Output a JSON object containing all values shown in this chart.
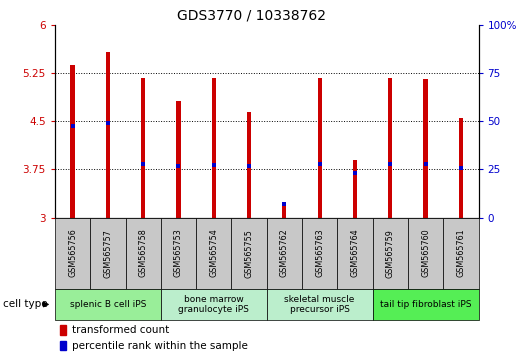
{
  "title": "GDS3770 / 10338762",
  "samples": [
    "GSM565756",
    "GSM565757",
    "GSM565758",
    "GSM565753",
    "GSM565754",
    "GSM565755",
    "GSM565762",
    "GSM565763",
    "GSM565764",
    "GSM565759",
    "GSM565760",
    "GSM565761"
  ],
  "bar_values": [
    5.37,
    5.57,
    5.18,
    4.82,
    5.17,
    4.65,
    3.25,
    5.17,
    3.9,
    5.17,
    5.15,
    4.55
  ],
  "percentile_values": [
    4.42,
    4.47,
    3.83,
    3.8,
    3.82,
    3.8,
    3.22,
    3.83,
    3.7,
    3.83,
    3.83,
    3.78
  ],
  "ymin": 3.0,
  "ymax": 6.0,
  "yticks": [
    3.0,
    3.75,
    4.5,
    5.25,
    6.0
  ],
  "ytick_labels": [
    "3",
    "3.75",
    "4.5",
    "5.25",
    "6"
  ],
  "y2ticks": [
    0,
    25,
    50,
    75,
    100
  ],
  "y2tick_labels": [
    "0",
    "25",
    "50",
    "75",
    "100%"
  ],
  "bar_color": "#cc0000",
  "percentile_color": "#0000cc",
  "bar_width": 0.12,
  "cell_type_groups": [
    {
      "label": "splenic B cell iPS",
      "start": 0,
      "end": 3,
      "color": "#99ee99"
    },
    {
      "label": "bone marrow\ngranulocyte iPS",
      "start": 3,
      "end": 6,
      "color": "#bbeecc"
    },
    {
      "label": "skeletal muscle\nprecursor iPS",
      "start": 6,
      "end": 9,
      "color": "#bbeecc"
    },
    {
      "label": "tail tip fibroblast iPS",
      "start": 9,
      "end": 12,
      "color": "#55ee55"
    }
  ],
  "legend_items": [
    {
      "label": "transformed count",
      "color": "#cc0000"
    },
    {
      "label": "percentile rank within the sample",
      "color": "#0000cc"
    }
  ],
  "cell_type_label": "cell type",
  "bg_color": "#ffffff",
  "sample_box_color": "#c8c8c8",
  "title_fontsize": 10,
  "axis_label_fontsize": 7.5,
  "tick_fontsize": 7.5,
  "sample_fontsize": 5.8,
  "group_fontsize": 6.5,
  "legend_fontsize": 7.5
}
